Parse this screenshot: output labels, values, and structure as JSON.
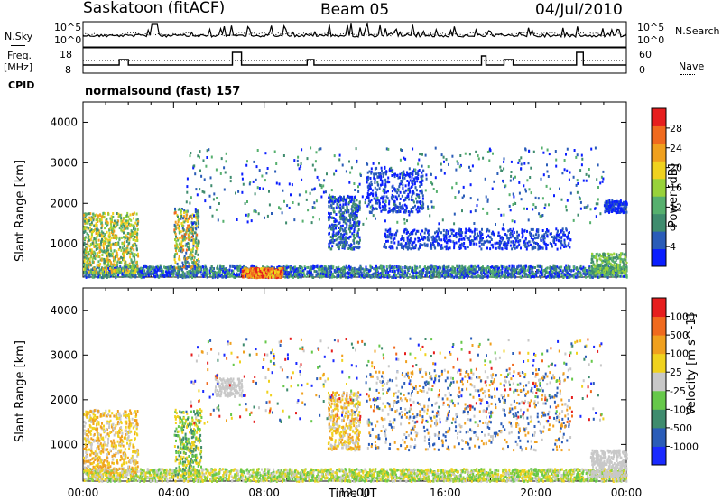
{
  "header": {
    "station": "Saskatoon (fitACF)",
    "beam": "Beam 05",
    "date": "04/Jul/2010"
  },
  "summary": {
    "nsky_label": "N.Sky",
    "nsearch_label": "N.Search",
    "freq_label": "Freq.",
    "freq_unit": "[MHz]",
    "nave_label": "Nave",
    "cpid_label": "CPID",
    "cpid_value": "normalsound (fast) 157",
    "noise_ticks": [
      "10^5",
      "10^0"
    ],
    "noise_ticks_right": [
      "10^5",
      "10^0"
    ],
    "freq_ticks": [
      "18",
      "8"
    ],
    "nave_ticks": [
      "60",
      "0"
    ]
  },
  "colors": {
    "power_scale": [
      "#0a1eff",
      "#2a5cb8",
      "#3f8c6e",
      "#56b06e",
      "#98d23a",
      "#f0d21e",
      "#f0a01e",
      "#f06a1e",
      "#e61e1e"
    ],
    "velocity_scale": [
      "#1a2aff",
      "#2a5cb8",
      "#3f8c6e",
      "#66c84a",
      "#c8c8c8",
      "#f0d21e",
      "#f0a01e",
      "#f06a1e",
      "#e61e1e"
    ]
  },
  "chart_data": [
    {
      "type": "heatmap",
      "title": "Power",
      "ylabel": "Slant Range [km]",
      "xlabel": "",
      "ylim": [
        180,
        4500
      ],
      "yticks": [
        "4000",
        "3000",
        "2000",
        "1000"
      ],
      "colorbar_label": "Power [dB]",
      "colorbar_ticks": [
        "28",
        "24",
        "20",
        "16",
        "12",
        "8",
        "4"
      ],
      "xlim": [
        0,
        24
      ]
    },
    {
      "type": "heatmap",
      "title": "Velocity",
      "ylabel": "Slant Range [km]",
      "xlabel": "Time UT",
      "ylim": [
        180,
        4500
      ],
      "yticks": [
        "4000",
        "3000",
        "2000",
        "1000"
      ],
      "xticks": [
        "00:00",
        "04:00",
        "08:00",
        "12:00",
        "16:00",
        "20:00",
        "00:00"
      ],
      "colorbar_label": "Velocity [m s^-1]",
      "colorbar_ticks": [
        "1000",
        "500",
        "100",
        "25",
        "-25",
        "-100",
        "-500",
        "-1000"
      ],
      "xlim": [
        0,
        24
      ]
    }
  ]
}
